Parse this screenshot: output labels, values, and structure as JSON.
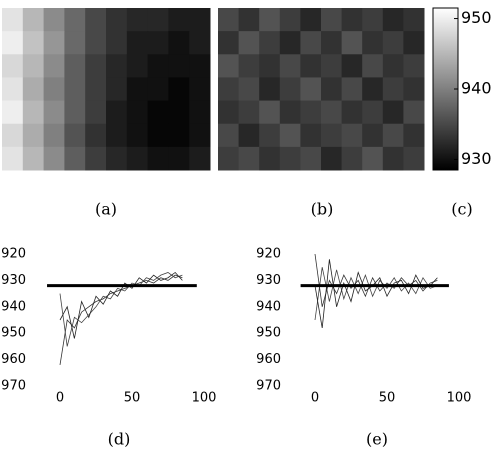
{
  "chart_data": [
    {
      "type": "heatmap",
      "caption": "(a)",
      "clim": [
        928.5,
        951.5
      ],
      "grid": [
        [
          949,
          945,
          941,
          938,
          935,
          933,
          932,
          932,
          931,
          931
        ],
        [
          950,
          946,
          942,
          938,
          935,
          933,
          931,
          931,
          930,
          931
        ],
        [
          948,
          945,
          941,
          937,
          934,
          932,
          931,
          930,
          930,
          930
        ],
        [
          949,
          944,
          940,
          937,
          934,
          932,
          930,
          930,
          929,
          930
        ],
        [
          950,
          945,
          941,
          937,
          934,
          931,
          930,
          929,
          929,
          930
        ],
        [
          948,
          944,
          940,
          936,
          933,
          931,
          930,
          929,
          929,
          930
        ],
        [
          949,
          945,
          941,
          937,
          934,
          932,
          931,
          930,
          930,
          931
        ]
      ]
    },
    {
      "type": "heatmap",
      "caption": "(b)",
      "clim": [
        928.5,
        951.5
      ],
      "grid": [
        [
          935,
          933,
          936,
          934,
          932,
          935,
          933,
          934,
          932,
          933
        ],
        [
          933,
          936,
          934,
          932,
          935,
          933,
          936,
          933,
          934,
          932
        ],
        [
          936,
          934,
          933,
          935,
          933,
          934,
          932,
          935,
          933,
          934
        ],
        [
          934,
          935,
          932,
          934,
          936,
          933,
          935,
          932,
          934,
          933
        ],
        [
          933,
          934,
          936,
          933,
          934,
          935,
          933,
          934,
          932,
          935
        ],
        [
          935,
          932,
          934,
          936,
          933,
          934,
          935,
          933,
          935,
          933
        ],
        [
          934,
          935,
          933,
          934,
          935,
          932,
          934,
          936,
          933,
          934
        ]
      ]
    },
    {
      "type": "colorbar",
      "caption": "(c)",
      "ylim": [
        928.5,
        951.5
      ],
      "yticks": [
        930,
        940,
        950
      ]
    },
    {
      "type": "line",
      "caption": "(d)",
      "xlim": [
        -15.5,
        100
      ],
      "ylim": [
        970,
        920
      ],
      "xticks": [
        0,
        50,
        100
      ],
      "yticks": [
        920,
        930,
        940,
        950,
        960,
        970
      ],
      "hline": {
        "y": 932,
        "x": [
          -9,
          95
        ]
      },
      "x": [
        0,
        5,
        10,
        15,
        20,
        25,
        30,
        35,
        40,
        45,
        50,
        55,
        60,
        65,
        70,
        75,
        80,
        85
      ],
      "series": [
        {
          "color": "#333333",
          "values": [
            962,
            945,
            948,
            942,
            940,
            938,
            937,
            935,
            934,
            933,
            932,
            931,
            930,
            931,
            929,
            930,
            928,
            929
          ]
        },
        {
          "color": "#444444",
          "values": [
            935,
            955,
            944,
            946,
            943,
            940,
            936,
            937,
            933,
            934,
            931,
            932,
            929,
            930,
            928,
            927,
            929,
            928
          ]
        },
        {
          "color": "#222222",
          "values": [
            945,
            940,
            952,
            938,
            944,
            936,
            939,
            934,
            936,
            931,
            933,
            929,
            931,
            928,
            930,
            929,
            927,
            930
          ]
        }
      ]
    },
    {
      "type": "line",
      "caption": "(e)",
      "xlim": [
        -15.5,
        100
      ],
      "ylim": [
        970,
        920
      ],
      "xticks": [
        0,
        50,
        100
      ],
      "yticks": [
        920,
        930,
        940,
        950,
        960,
        970
      ],
      "hline": {
        "y": 932,
        "x": [
          -10,
          93
        ]
      },
      "x": [
        0,
        5,
        10,
        15,
        20,
        25,
        30,
        35,
        40,
        45,
        50,
        55,
        60,
        65,
        70,
        75,
        80,
        85
      ],
      "series": [
        {
          "color": "#333333",
          "values": [
            920,
            940,
            930,
            935,
            928,
            933,
            930,
            936,
            929,
            934,
            931,
            933,
            929,
            932,
            930,
            934,
            931,
            930
          ]
        },
        {
          "color": "#444444",
          "values": [
            945,
            925,
            938,
            926,
            937,
            929,
            935,
            928,
            936,
            930,
            933,
            929,
            934,
            931,
            935,
            929,
            933,
            932
          ]
        },
        {
          "color": "#222222",
          "values": [
            932,
            948,
            922,
            940,
            931,
            938,
            927,
            934,
            932,
            929,
            936,
            931,
            930,
            935,
            928,
            933,
            932,
            929
          ]
        }
      ]
    }
  ]
}
